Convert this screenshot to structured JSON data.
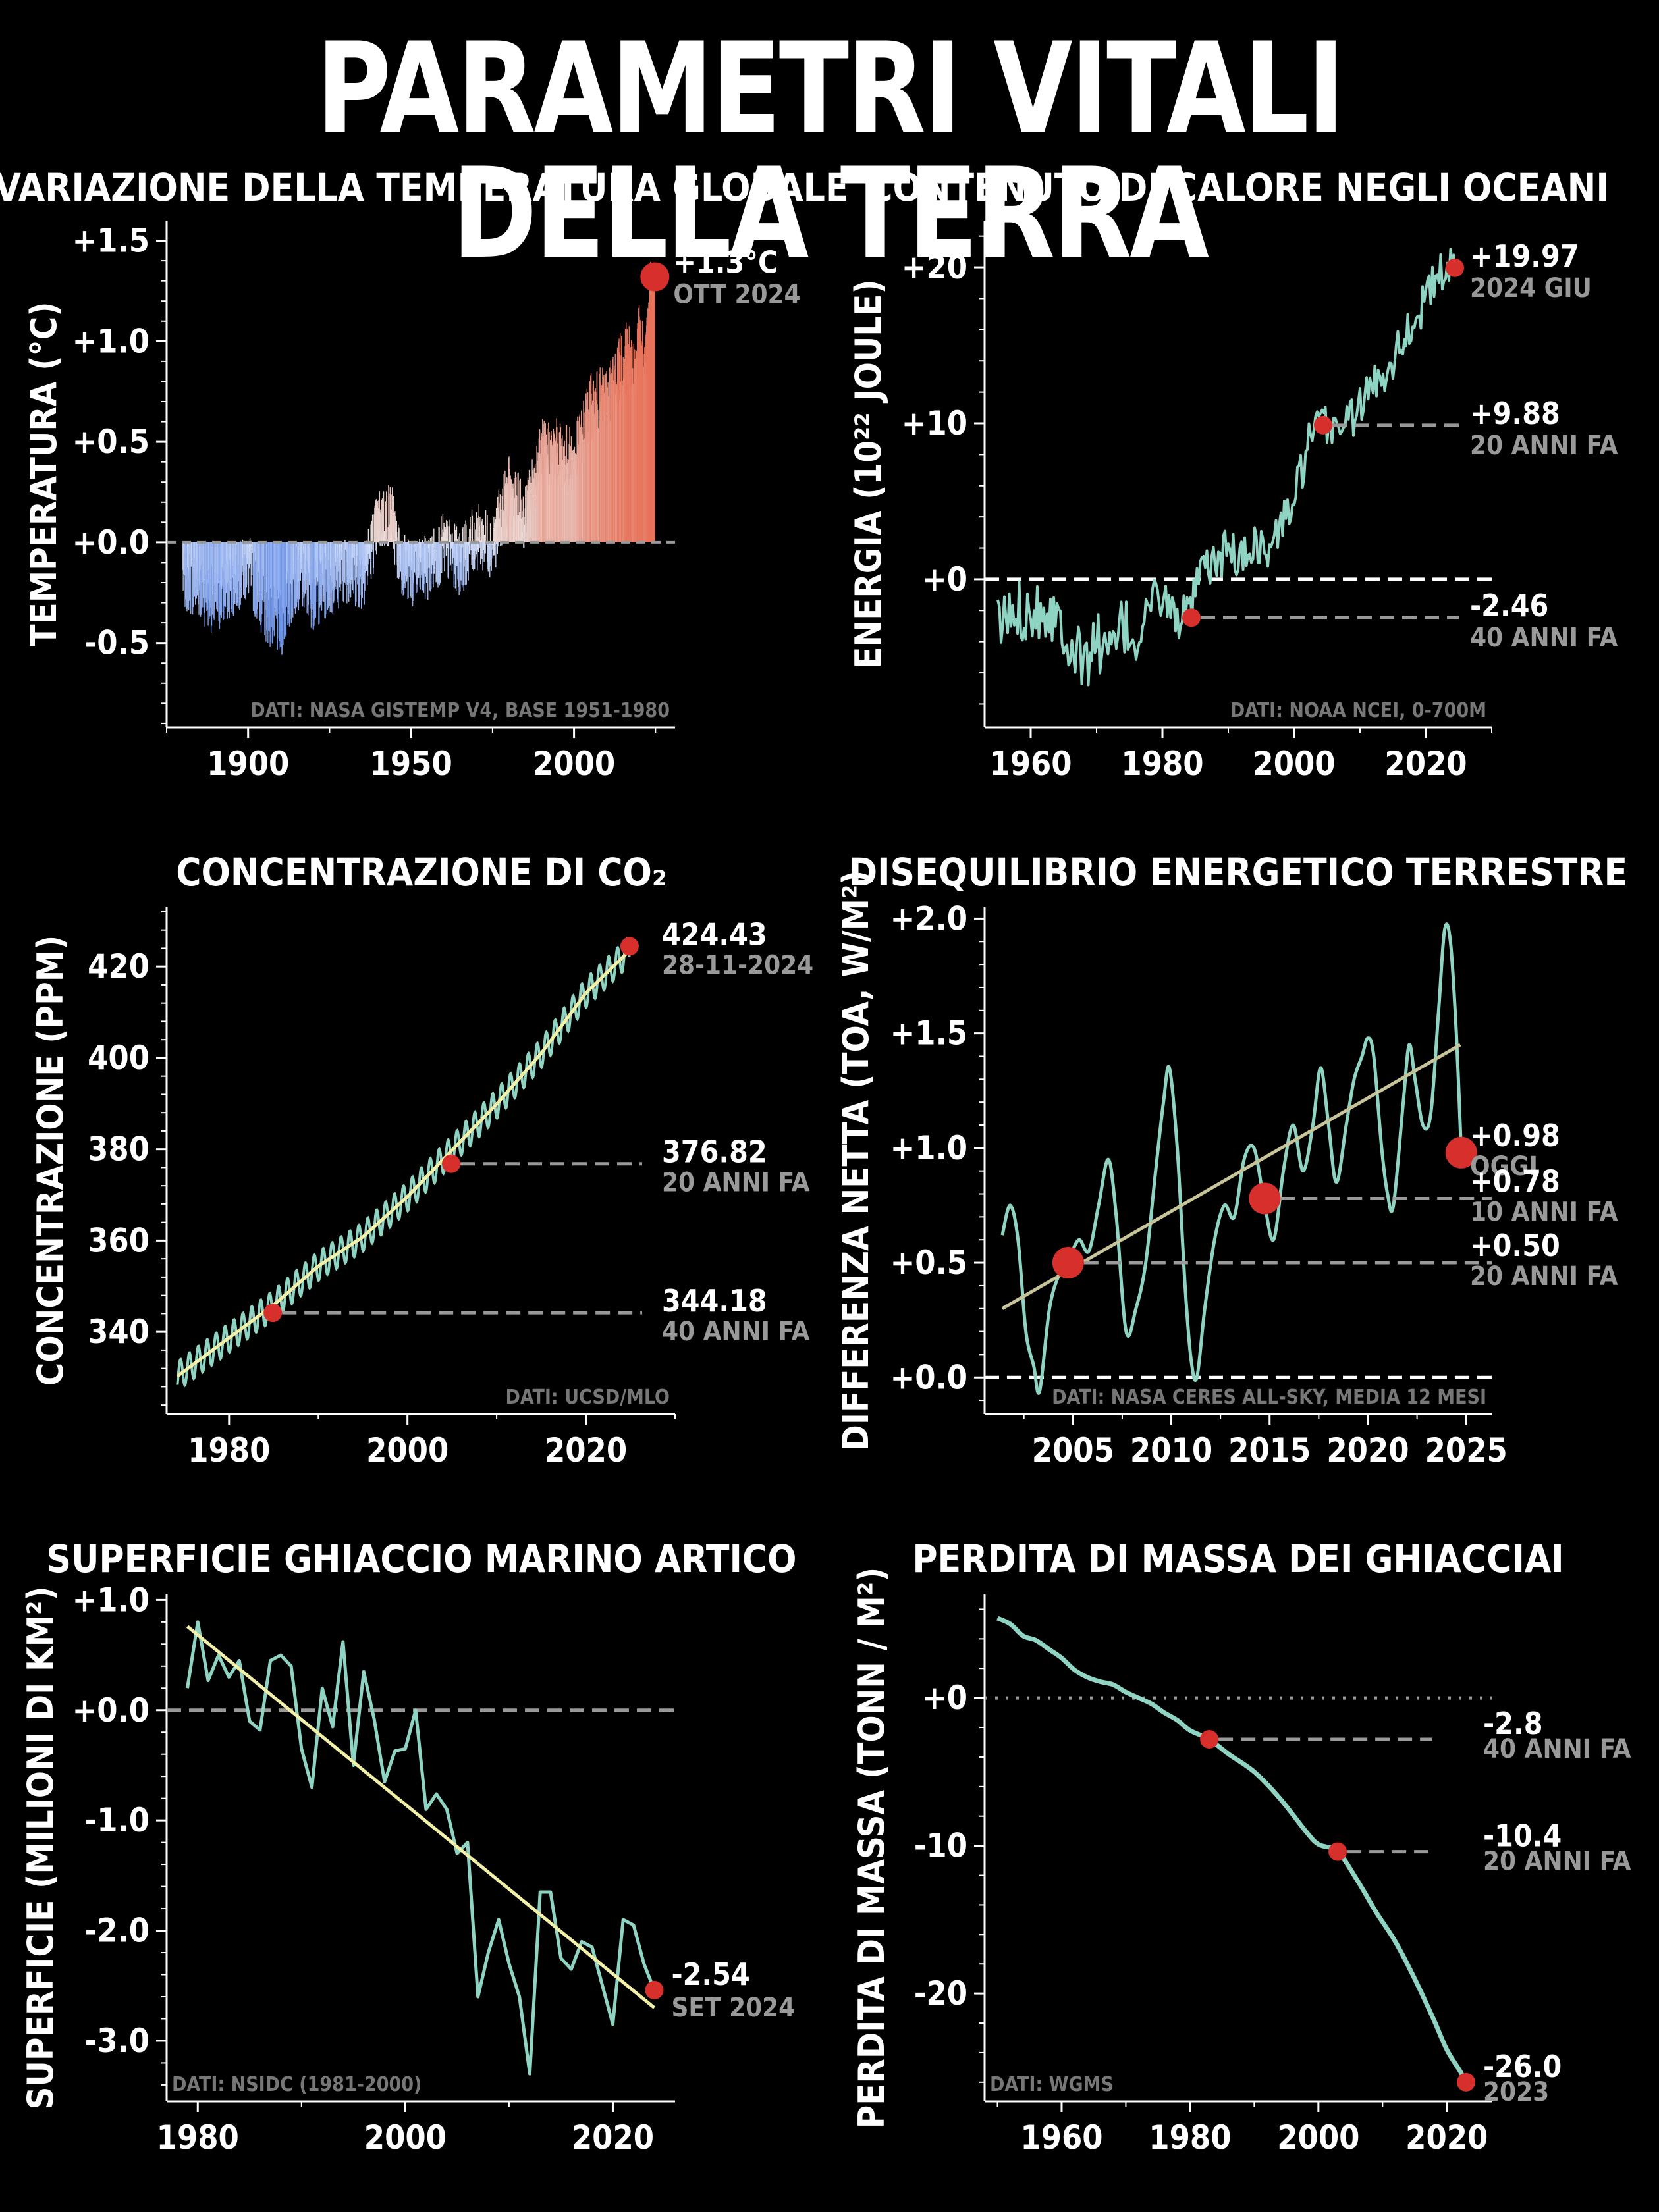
{
  "page_title": "PARAMETRI VITALI DELLA TERRA",
  "colors": {
    "line": "#8fd3c3",
    "trend": "#f2f0a8",
    "trend2": "#c8c49a",
    "marker": "#d7302c",
    "cold": "#6f95e8",
    "warm": "#e8735a",
    "dash": "#999999"
  },
  "chart_data": [
    {
      "id": "temp",
      "type": "bar",
      "title": "VARIAZIONE DELLA TEMPERATURA GLOBALE",
      "ylabel": "TEMPERATURA (°C)",
      "xlabel": "",
      "xlim": [
        1875,
        2031
      ],
      "ylim": [
        -0.92,
        1.6
      ],
      "xticks": [
        1900,
        1950,
        2000
      ],
      "yticks": [
        -0.5,
        0.0,
        0.5,
        1.0,
        1.5
      ],
      "ytick_labels": [
        "-0.5",
        "+0.0",
        "+0.5",
        "+1.0",
        "+1.5"
      ],
      "source": "DATI: NASA GISTEMP V4, BASE 1951-1980",
      "anomaly_anchors": [
        [
          1880,
          -0.17
        ],
        [
          1885,
          -0.22
        ],
        [
          1890,
          -0.3
        ],
        [
          1895,
          -0.21
        ],
        [
          1900,
          -0.12
        ],
        [
          1905,
          -0.32
        ],
        [
          1910,
          -0.42
        ],
        [
          1915,
          -0.16
        ],
        [
          1920,
          -0.27
        ],
        [
          1925,
          -0.2
        ],
        [
          1930,
          -0.13
        ],
        [
          1935,
          -0.18
        ],
        [
          1940,
          0.1
        ],
        [
          1944,
          0.15
        ],
        [
          1946,
          -0.05
        ],
        [
          1950,
          -0.17
        ],
        [
          1955,
          -0.13
        ],
        [
          1960,
          -0.02
        ],
        [
          1965,
          -0.1
        ],
        [
          1970,
          0.03
        ],
        [
          1975,
          -0.01
        ],
        [
          1980,
          0.26
        ],
        [
          1985,
          0.12
        ],
        [
          1990,
          0.45
        ],
        [
          1995,
          0.45
        ],
        [
          2000,
          0.4
        ],
        [
          2005,
          0.67
        ],
        [
          2010,
          0.72
        ],
        [
          2015,
          0.9
        ],
        [
          2016,
          1.01
        ],
        [
          2018,
          0.85
        ],
        [
          2020,
          1.01
        ],
        [
          2022,
          0.89
        ],
        [
          2023,
          1.17
        ],
        [
          2024,
          1.28
        ]
      ],
      "monthly_noise": 0.17,
      "highlight": {
        "x": 2024.8,
        "y": 1.32,
        "label": "+1.3°C",
        "sublabel": "OTT 2024"
      },
      "zero_line": 0.0
    },
    {
      "id": "ohc",
      "type": "line",
      "title": "CONTENUTO DI CALORE NEGLI OCEANI",
      "ylabel": "ENERGIA (10²² JOULE)",
      "xlabel": "",
      "xlim": [
        1953,
        2030
      ],
      "ylim": [
        -9.5,
        23
      ],
      "xticks": [
        1960,
        1980,
        2000,
        2020
      ],
      "yticks": [
        0,
        10,
        20
      ],
      "ytick_labels": [
        "+0",
        "+10",
        "+20"
      ],
      "source": "DATI: NOAA NCEI, 0-700M",
      "anchors": [
        [
          1955,
          -3.0
        ],
        [
          1958,
          -2.0
        ],
        [
          1961,
          -1.8
        ],
        [
          1964,
          -2.2
        ],
        [
          1966,
          -4.0
        ],
        [
          1968,
          -5.5
        ],
        [
          1970,
          -3.8
        ],
        [
          1972,
          -5.0
        ],
        [
          1974,
          -3.0
        ],
        [
          1976,
          -4.2
        ],
        [
          1978,
          -1.5
        ],
        [
          1980,
          -1.0
        ],
        [
          1982,
          -2.5
        ],
        [
          1984,
          -2.4
        ],
        [
          1986,
          0.5
        ],
        [
          1988,
          1.0
        ],
        [
          1990,
          2.0
        ],
        [
          1992,
          1.2
        ],
        [
          1994,
          2.5
        ],
        [
          1996,
          1.5
        ],
        [
          1998,
          3.5
        ],
        [
          2000,
          5.0
        ],
        [
          2002,
          8.5
        ],
        [
          2004,
          9.9
        ],
        [
          2006,
          9.8
        ],
        [
          2008,
          10.2
        ],
        [
          2010,
          11.0
        ],
        [
          2012,
          12.5
        ],
        [
          2014,
          13.5
        ],
        [
          2016,
          15.0
        ],
        [
          2018,
          16.5
        ],
        [
          2020,
          18.0
        ],
        [
          2022,
          19.5
        ],
        [
          2024.5,
          20.0
        ]
      ],
      "noise": 1.4,
      "zero_line": 0,
      "markers": [
        {
          "x": 2024.4,
          "y": 19.97,
          "value": "+19.97",
          "sub": "2024 GIU",
          "big": false
        },
        {
          "x": 2004.4,
          "y": 9.88,
          "value": "+9.88",
          "sub": "20 ANNI FA",
          "big": false
        },
        {
          "x": 1984.4,
          "y": -2.46,
          "value": "-2.46",
          "sub": "40 ANNI FA",
          "big": false
        }
      ]
    },
    {
      "id": "co2",
      "type": "line",
      "title": "CONCENTRAZIONE DI CO₂",
      "ylabel": "CONCENTRAZIONE (PPM)",
      "xlabel": "",
      "xlim": [
        1973,
        2030
      ],
      "ylim": [
        322,
        433
      ],
      "xticks": [
        1980,
        2000,
        2020
      ],
      "yticks": [
        340,
        360,
        380,
        400,
        420
      ],
      "ytick_labels": [
        "340",
        "360",
        "380",
        "400",
        "420"
      ],
      "source": "DATI: UCSD/MLO",
      "trend_anchors": [
        [
          1974,
          330.0
        ],
        [
          1980,
          338.7
        ],
        [
          1985,
          345.9
        ],
        [
          1990,
          354.4
        ],
        [
          1995,
          360.8
        ],
        [
          2000,
          369.6
        ],
        [
          2005,
          379.8
        ],
        [
          2010,
          389.9
        ],
        [
          2015,
          401.0
        ],
        [
          2020,
          414.2
        ],
        [
          2024.9,
          423.5
        ]
      ],
      "seasonal_amplitude": 3.2,
      "markers": [
        {
          "x": 2024.9,
          "y": 424.43,
          "value": "424.43",
          "sub": "28-11-2024",
          "big": false
        },
        {
          "x": 2004.9,
          "y": 376.82,
          "value": "376.82",
          "sub": "20 ANNI FA",
          "big": false
        },
        {
          "x": 1984.9,
          "y": 344.18,
          "value": "344.18",
          "sub": "40 ANNI FA",
          "big": false
        }
      ]
    },
    {
      "id": "eei",
      "type": "line",
      "title": "DISEQUILIBRIO ENERGETICO TERRESTRE",
      "ylabel": "DIFFERENZA NETTA (TOA, W/M²)",
      "xlabel": "",
      "xlim": [
        2000.5,
        2026.3
      ],
      "ylim": [
        -0.16,
        2.05
      ],
      "xticks": [
        2005,
        2010,
        2015,
        2020,
        2025
      ],
      "yticks": [
        0.0,
        0.5,
        1.0,
        1.5,
        2.0
      ],
      "ytick_labels": [
        "+0.0",
        "+0.5",
        "+1.0",
        "+1.5",
        "+2.0"
      ],
      "source": "DATI: NASA CERES ALL-SKY, MEDIA 12 MESI",
      "anchors": [
        [
          2001.4,
          0.62
        ],
        [
          2001.8,
          0.75
        ],
        [
          2002.2,
          0.6
        ],
        [
          2002.6,
          0.2
        ],
        [
          2003.0,
          0.05
        ],
        [
          2003.3,
          -0.06
        ],
        [
          2003.8,
          0.3
        ],
        [
          2004.3,
          0.45
        ],
        [
          2004.8,
          0.52
        ],
        [
          2005.3,
          0.6
        ],
        [
          2005.8,
          0.55
        ],
        [
          2006.3,
          0.75
        ],
        [
          2006.8,
          0.95
        ],
        [
          2007.2,
          0.7
        ],
        [
          2007.7,
          0.2
        ],
        [
          2008.2,
          0.3
        ],
        [
          2008.7,
          0.5
        ],
        [
          2009.2,
          0.9
        ],
        [
          2009.6,
          1.2
        ],
        [
          2009.9,
          1.35
        ],
        [
          2010.3,
          1.0
        ],
        [
          2010.7,
          0.4
        ],
        [
          2011.0,
          0.08
        ],
        [
          2011.3,
          0.0
        ],
        [
          2011.7,
          0.3
        ],
        [
          2012.2,
          0.6
        ],
        [
          2012.7,
          0.75
        ],
        [
          2013.2,
          0.7
        ],
        [
          2013.7,
          0.95
        ],
        [
          2014.2,
          1.0
        ],
        [
          2014.7,
          0.78
        ],
        [
          2015.2,
          0.6
        ],
        [
          2015.7,
          0.9
        ],
        [
          2016.2,
          1.1
        ],
        [
          2016.7,
          0.9
        ],
        [
          2017.2,
          1.1
        ],
        [
          2017.6,
          1.35
        ],
        [
          2018.0,
          1.1
        ],
        [
          2018.4,
          0.85
        ],
        [
          2018.9,
          1.1
        ],
        [
          2019.3,
          1.3
        ],
        [
          2019.7,
          1.4
        ],
        [
          2020.0,
          1.48
        ],
        [
          2020.3,
          1.4
        ],
        [
          2020.7,
          1.0
        ],
        [
          2021.0,
          0.8
        ],
        [
          2021.3,
          0.75
        ],
        [
          2021.8,
          1.2
        ],
        [
          2022.1,
          1.45
        ],
        [
          2022.4,
          1.3
        ],
        [
          2022.8,
          1.1
        ],
        [
          2023.2,
          1.15
        ],
        [
          2023.6,
          1.6
        ],
        [
          2023.9,
          1.95
        ],
        [
          2024.2,
          1.9
        ],
        [
          2024.5,
          1.5
        ],
        [
          2024.75,
          0.98
        ]
      ],
      "trend": [
        [
          2001.4,
          0.3
        ],
        [
          2024.7,
          1.45
        ]
      ],
      "zero_line": 0,
      "markers": [
        {
          "x": 2024.75,
          "y": 0.98,
          "value": "+0.98",
          "sub": "OGGI",
          "big": true
        },
        {
          "x": 2014.75,
          "y": 0.78,
          "value": "+0.78",
          "sub": "10 ANNI FA",
          "big": true
        },
        {
          "x": 2004.75,
          "y": 0.5,
          "value": "+0.50",
          "sub": "20 ANNI FA",
          "big": true
        }
      ]
    },
    {
      "id": "ice",
      "type": "line",
      "title": "SUPERFICIE GHIACCIO MARINO ARTICO",
      "ylabel": "SUPERFICIE (MILIONI DI KM²)",
      "xlabel": "",
      "xlim": [
        1977,
        2026
      ],
      "ylim": [
        -3.55,
        1.05
      ],
      "xticks": [
        1980,
        2000,
        2020
      ],
      "yticks": [
        -3.0,
        -2.0,
        -1.0,
        0.0,
        1.0
      ],
      "ytick_labels": [
        "-3.0",
        "-2.0",
        "-1.0",
        "+0.0",
        "+1.0"
      ],
      "source": "DATI: NSIDC (1981-2000)",
      "values": [
        [
          1979,
          0.2
        ],
        [
          1980,
          0.8
        ],
        [
          1981,
          0.27
        ],
        [
          1982,
          0.5
        ],
        [
          1983,
          0.3
        ],
        [
          1984,
          0.45
        ],
        [
          1985,
          -0.1
        ],
        [
          1986,
          -0.18
        ],
        [
          1987,
          0.45
        ],
        [
          1988,
          0.5
        ],
        [
          1989,
          0.4
        ],
        [
          1990,
          -0.35
        ],
        [
          1991,
          -0.7
        ],
        [
          1992,
          0.2
        ],
        [
          1993,
          -0.15
        ],
        [
          1994,
          0.62
        ],
        [
          1995,
          -0.5
        ],
        [
          1996,
          0.35
        ],
        [
          1997,
          -0.08
        ],
        [
          1998,
          -0.65
        ],
        [
          1999,
          -0.37
        ],
        [
          2000,
          -0.35
        ],
        [
          2001,
          0.0
        ],
        [
          2002,
          -0.9
        ],
        [
          2003,
          -0.76
        ],
        [
          2004,
          -0.9
        ],
        [
          2005,
          -1.3
        ],
        [
          2006,
          -1.2
        ],
        [
          2007,
          -2.6
        ],
        [
          2008,
          -2.2
        ],
        [
          2009,
          -1.9
        ],
        [
          2010,
          -2.3
        ],
        [
          2011,
          -2.6
        ],
        [
          2012,
          -3.3
        ],
        [
          2013,
          -1.65
        ],
        [
          2014,
          -1.65
        ],
        [
          2015,
          -2.25
        ],
        [
          2016,
          -2.35
        ],
        [
          2017,
          -2.1
        ],
        [
          2018,
          -2.15
        ],
        [
          2019,
          -2.5
        ],
        [
          2020,
          -2.85
        ],
        [
          2021,
          -1.9
        ],
        [
          2022,
          -1.95
        ],
        [
          2023,
          -2.3
        ],
        [
          2024,
          -2.54
        ]
      ],
      "trend": [
        [
          1979,
          0.76
        ],
        [
          2024,
          -2.7
        ]
      ],
      "zero_line": 0,
      "markers": [
        {
          "x": 2024,
          "y": -2.54,
          "value": "-2.54",
          "sub": "SET 2024",
          "big": false
        }
      ]
    },
    {
      "id": "glacier",
      "type": "line",
      "title": "PERDITA DI MASSA DEI GHIACCIAI",
      "ylabel": "PERDITA DI MASSA (TONN / M²)",
      "xlabel": "",
      "xlim": [
        1948,
        2027
      ],
      "ylim": [
        -27.3,
        7
      ],
      "xticks": [
        1960,
        1980,
        2000,
        2020
      ],
      "yticks": [
        -20,
        -10,
        0
      ],
      "ytick_labels": [
        "-20",
        "-10",
        "+0"
      ],
      "source": "DATI: WGMS",
      "values": [
        [
          1950,
          5.4
        ],
        [
          1952,
          5.0
        ],
        [
          1954,
          4.2
        ],
        [
          1956,
          3.9
        ],
        [
          1958,
          3.3
        ],
        [
          1960,
          2.7
        ],
        [
          1962,
          1.9
        ],
        [
          1964,
          1.4
        ],
        [
          1966,
          1.1
        ],
        [
          1968,
          0.9
        ],
        [
          1970,
          0.4
        ],
        [
          1972,
          0.0
        ],
        [
          1974,
          -0.4
        ],
        [
          1976,
          -1.0
        ],
        [
          1978,
          -1.5
        ],
        [
          1980,
          -2.2
        ],
        [
          1983,
          -2.8
        ],
        [
          1986,
          -3.8
        ],
        [
          1990,
          -5.0
        ],
        [
          1994,
          -6.8
        ],
        [
          1998,
          -9.0
        ],
        [
          2000,
          -9.9
        ],
        [
          2003,
          -10.4
        ],
        [
          2006,
          -12.3
        ],
        [
          2009,
          -14.5
        ],
        [
          2012,
          -16.5
        ],
        [
          2015,
          -19.0
        ],
        [
          2018,
          -21.8
        ],
        [
          2020,
          -23.8
        ],
        [
          2022,
          -25.2
        ],
        [
          2023,
          -26.0
        ]
      ],
      "zero_line": 0,
      "zero_dotted": true,
      "markers": [
        {
          "x": 2023,
          "y": -26.0,
          "value": "-26.0",
          "sub": "2023",
          "big": false
        },
        {
          "x": 2003,
          "y": -10.4,
          "value": "-10.4",
          "sub": "20 ANNI FA",
          "big": false
        },
        {
          "x": 1983,
          "y": -2.8,
          "value": "-2.8",
          "sub": "40 ANNI FA",
          "big": false
        }
      ]
    }
  ]
}
